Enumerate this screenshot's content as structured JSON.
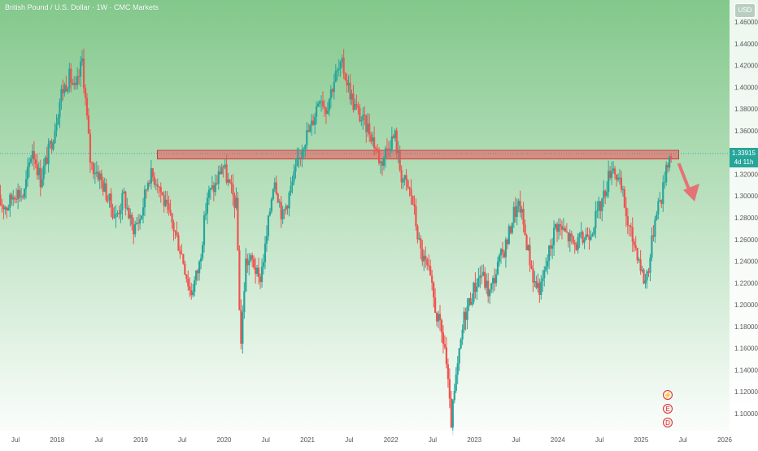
{
  "header": {
    "title": "British Pound / U.S. Dollar · 1W · CMC Markets",
    "currency": "USD"
  },
  "price_label": {
    "price": "1.33915",
    "countdown": "4d 11h"
  },
  "events": [
    "⚡",
    "E",
    "D"
  ],
  "colors": {
    "up": "#26a69a",
    "down": "#ef5350",
    "zone_fill": "#e57373",
    "arrow": "#e57373",
    "bg_top": "#82c88b",
    "bg_bottom": "#ffffff"
  },
  "chart_data": {
    "type": "candlestick",
    "title": "British Pound / U.S. Dollar · 1W · CMC Markets",
    "y_ticks": [
      "1.46000",
      "1.44000",
      "1.42000",
      "1.40000",
      "1.38000",
      "1.36000",
      "1.34000",
      "1.32000",
      "1.30000",
      "1.28000",
      "1.26000",
      "1.24000",
      "1.22000",
      "1.20000",
      "1.18000",
      "1.16000",
      "1.14000",
      "1.12000",
      "1.10000"
    ],
    "x_ticks": [
      {
        "label": "Jul",
        "t": 2017.5
      },
      {
        "label": "2018",
        "t": 2018.0
      },
      {
        "label": "Jul",
        "t": 2018.5
      },
      {
        "label": "2019",
        "t": 2019.0
      },
      {
        "label": "Jul",
        "t": 2019.5
      },
      {
        "label": "2020",
        "t": 2020.0
      },
      {
        "label": "Jul",
        "t": 2020.5
      },
      {
        "label": "2021",
        "t": 2021.0
      },
      {
        "label": "Jul",
        "t": 2021.5
      },
      {
        "label": "2022",
        "t": 2022.0
      },
      {
        "label": "Jul",
        "t": 2022.5
      },
      {
        "label": "2023",
        "t": 2023.0
      },
      {
        "label": "Jul",
        "t": 2023.5
      },
      {
        "label": "2024",
        "t": 2024.0
      },
      {
        "label": "Jul",
        "t": 2024.5
      },
      {
        "label": "2025",
        "t": 2025.0
      },
      {
        "label": "Jul",
        "t": 2025.5
      },
      {
        "label": "2026",
        "t": 2026.0
      }
    ],
    "price_path": [
      [
        2017.3,
        1.295
      ],
      [
        2017.4,
        1.29
      ],
      [
        2017.5,
        1.305
      ],
      [
        2017.6,
        1.3
      ],
      [
        2017.7,
        1.345
      ],
      [
        2017.8,
        1.315
      ],
      [
        2017.95,
        1.355
      ],
      [
        2018.05,
        1.395
      ],
      [
        2018.15,
        1.41
      ],
      [
        2018.22,
        1.395
      ],
      [
        2018.3,
        1.425
      ],
      [
        2018.4,
        1.33
      ],
      [
        2018.5,
        1.32
      ],
      [
        2018.6,
        1.3
      ],
      [
        2018.7,
        1.28
      ],
      [
        2018.8,
        1.3
      ],
      [
        2018.9,
        1.27
      ],
      [
        2019.0,
        1.28
      ],
      [
        2019.1,
        1.32
      ],
      [
        2019.2,
        1.315
      ],
      [
        2019.3,
        1.29
      ],
      [
        2019.4,
        1.27
      ],
      [
        2019.5,
        1.245
      ],
      [
        2019.6,
        1.21
      ],
      [
        2019.7,
        1.235
      ],
      [
        2019.8,
        1.3
      ],
      [
        2019.9,
        1.31
      ],
      [
        2019.98,
        1.33
      ],
      [
        2020.08,
        1.305
      ],
      [
        2020.15,
        1.29
      ],
      [
        2020.2,
        1.16
      ],
      [
        2020.26,
        1.24
      ],
      [
        2020.35,
        1.24
      ],
      [
        2020.42,
        1.22
      ],
      [
        2020.5,
        1.255
      ],
      [
        2020.6,
        1.32
      ],
      [
        2020.7,
        1.28
      ],
      [
        2020.85,
        1.32
      ],
      [
        2020.95,
        1.35
      ],
      [
        2021.05,
        1.365
      ],
      [
        2021.15,
        1.395
      ],
      [
        2021.22,
        1.38
      ],
      [
        2021.33,
        1.41
      ],
      [
        2021.42,
        1.42
      ],
      [
        2021.55,
        1.385
      ],
      [
        2021.65,
        1.37
      ],
      [
        2021.75,
        1.36
      ],
      [
        2021.88,
        1.33
      ],
      [
        2021.98,
        1.35
      ],
      [
        2022.05,
        1.355
      ],
      [
        2022.12,
        1.32
      ],
      [
        2022.25,
        1.3
      ],
      [
        2022.35,
        1.25
      ],
      [
        2022.45,
        1.23
      ],
      [
        2022.55,
        1.19
      ],
      [
        2022.65,
        1.16
      ],
      [
        2022.72,
        1.09
      ],
      [
        2022.78,
        1.13
      ],
      [
        2022.88,
        1.19
      ],
      [
        2022.97,
        1.21
      ],
      [
        2023.08,
        1.23
      ],
      [
        2023.18,
        1.21
      ],
      [
        2023.3,
        1.24
      ],
      [
        2023.4,
        1.26
      ],
      [
        2023.47,
        1.285
      ],
      [
        2023.55,
        1.29
      ],
      [
        2023.62,
        1.26
      ],
      [
        2023.72,
        1.22
      ],
      [
        2023.8,
        1.215
      ],
      [
        2023.9,
        1.25
      ],
      [
        2023.98,
        1.275
      ],
      [
        2024.1,
        1.265
      ],
      [
        2024.2,
        1.255
      ],
      [
        2024.3,
        1.26
      ],
      [
        2024.4,
        1.27
      ],
      [
        2024.48,
        1.285
      ],
      [
        2024.55,
        1.3
      ],
      [
        2024.65,
        1.33
      ],
      [
        2024.7,
        1.32
      ],
      [
        2024.78,
        1.3
      ],
      [
        2024.85,
        1.27
      ],
      [
        2024.95,
        1.25
      ],
      [
        2025.04,
        1.22
      ],
      [
        2025.1,
        1.24
      ],
      [
        2025.18,
        1.29
      ],
      [
        2025.25,
        1.3
      ],
      [
        2025.3,
        1.33
      ],
      [
        2025.36,
        1.339
      ]
    ],
    "resistance_zone": {
      "from": 1.334,
      "to": 1.342,
      "t_start": 2019.2,
      "t_end": 2025.45
    },
    "projection": {
      "from": [
        2025.45,
        1.33
      ],
      "to": [
        2025.62,
        1.295
      ]
    },
    "current_price": 1.33915
  }
}
